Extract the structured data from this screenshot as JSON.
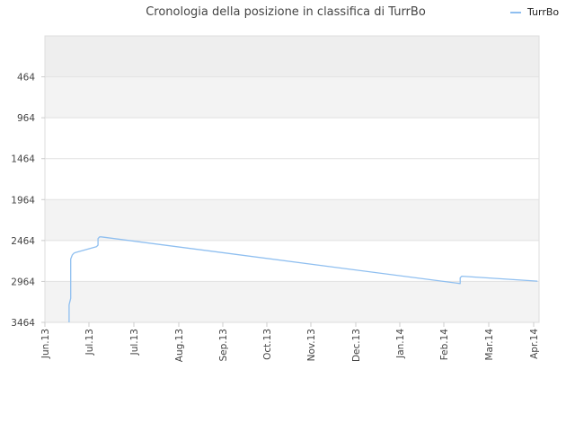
{
  "chart_data": {
    "type": "line",
    "title": "Cronologia della posizione in classifica di TurrBo",
    "xlabel": "",
    "ylabel": "",
    "y_reversed": true,
    "ylim": [
      3464,
      -36
    ],
    "y_ticks": [
      464,
      964,
      1464,
      1964,
      2464,
      2964,
      3464
    ],
    "x_ticks": [
      "Jun.13",
      "Jul.13",
      "Jul.13",
      "Aug.13",
      "Sep.13",
      "Oct.13",
      "Nov.13",
      "Dec.13",
      "Jan.14",
      "Feb.14",
      "Mar.14",
      "Apr.14"
    ],
    "grid": true,
    "legend_position": "top-right",
    "series": [
      {
        "name": "TurrBo",
        "color": "#8fbff0",
        "x": [
          "2013-06-16",
          "2013-06-16",
          "2013-06-17",
          "2013-06-17",
          "2013-06-18",
          "2013-06-19",
          "2013-06-20",
          "2013-07-03",
          "2013-07-04",
          "2013-07-04",
          "2013-07-05",
          "2013-07-06",
          "2014-02-14",
          "2014-02-14",
          "2014-02-15",
          "2014-04-03"
        ],
        "values": [
          3464,
          3250,
          3170,
          2690,
          2640,
          2620,
          2610,
          2540,
          2520,
          2440,
          2420,
          2420,
          2990,
          2920,
          2900,
          2960
        ]
      }
    ]
  },
  "legend": {
    "label": "TurrBo"
  }
}
